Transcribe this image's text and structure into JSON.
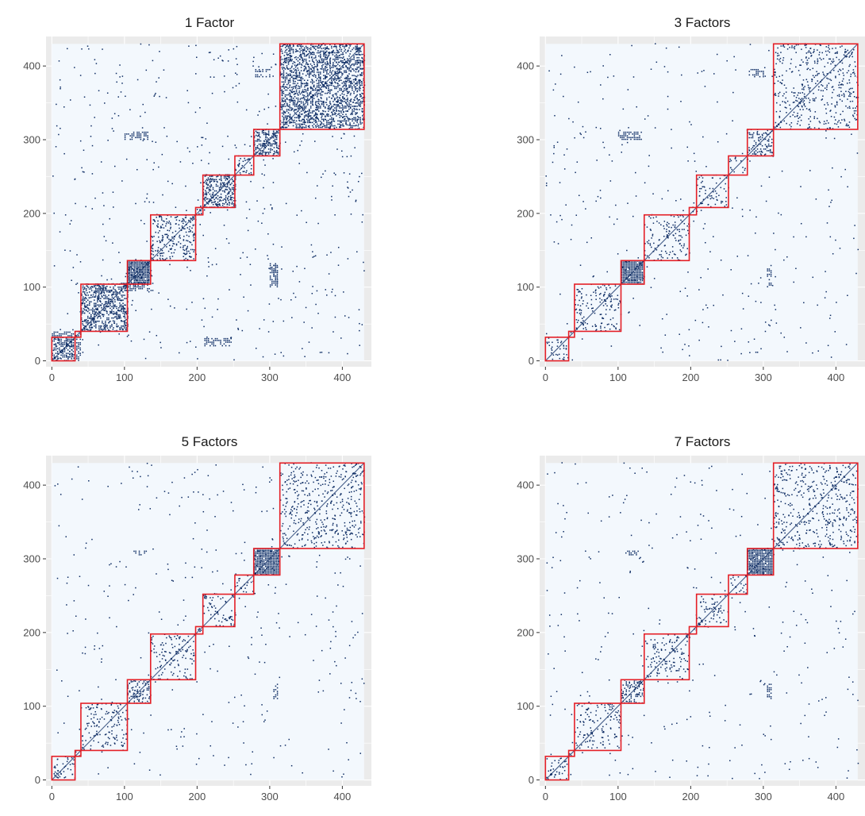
{
  "colors": {
    "panel_background": "#ebebeb",
    "matrix_background": "#f3f8fd",
    "grid_line": "#ffffff",
    "points": "#0c2b63",
    "block_outline": "#e41f26",
    "tick_label": "#4d4d4d",
    "title": "#1a1a1a"
  },
  "chart_data": [
    {
      "type": "heatmap",
      "title": "1 Factor",
      "xlabel": "",
      "ylabel": "",
      "xlim": [
        -8,
        440
      ],
      "ylim": [
        -8,
        440
      ],
      "matrix_extent": [
        0,
        430
      ],
      "x_ticks": [
        0,
        100,
        200,
        300,
        400
      ],
      "y_ticks": [
        0,
        100,
        200,
        300,
        400
      ],
      "grid": true,
      "legend": "none",
      "blocks": [
        [
          0,
          32
        ],
        [
          32,
          40
        ],
        [
          40,
          104
        ],
        [
          104,
          136
        ],
        [
          136,
          198
        ],
        [
          198,
          208
        ],
        [
          208,
          252
        ],
        [
          252,
          278
        ],
        [
          278,
          314
        ],
        [
          314,
          430
        ]
      ],
      "dense_blocks": [
        [
          104,
          136
        ],
        [
          278,
          314
        ],
        [
          208,
          252
        ],
        [
          314,
          430
        ],
        [
          40,
          104
        ]
      ],
      "off_block_clusters": [
        [
          100,
          132,
          300,
          310
        ],
        [
          300,
          310,
          100,
          132
        ],
        [
          305,
          312,
          105,
          130
        ],
        [
          95,
          140,
          95,
          105
        ],
        [
          280,
          300,
          385,
          395
        ],
        [
          210,
          250,
          20,
          30
        ],
        [
          0,
          40,
          0,
          40
        ]
      ]
    },
    {
      "type": "heatmap",
      "title": "3 Factors",
      "xlabel": "",
      "ylabel": "",
      "xlim": [
        -8,
        440
      ],
      "ylim": [
        -8,
        440
      ],
      "matrix_extent": [
        0,
        430
      ],
      "x_ticks": [
        0,
        100,
        200,
        300,
        400
      ],
      "y_ticks": [
        0,
        100,
        200,
        300,
        400
      ],
      "grid": true,
      "legend": "none",
      "blocks": [
        [
          0,
          32
        ],
        [
          32,
          40
        ],
        [
          40,
          104
        ],
        [
          104,
          136
        ],
        [
          136,
          198
        ],
        [
          198,
          208
        ],
        [
          208,
          252
        ],
        [
          252,
          278
        ],
        [
          278,
          314
        ],
        [
          314,
          430
        ]
      ],
      "dense_blocks": [
        [
          104,
          136
        ],
        [
          278,
          314
        ]
      ],
      "off_block_clusters": [
        [
          100,
          132,
          300,
          310
        ],
        [
          305,
          312,
          100,
          130
        ],
        [
          280,
          300,
          385,
          395
        ]
      ]
    },
    {
      "type": "heatmap",
      "title": "5 Factors",
      "xlabel": "",
      "ylabel": "",
      "xlim": [
        -8,
        440
      ],
      "ylim": [
        -8,
        440
      ],
      "matrix_extent": [
        0,
        430
      ],
      "x_ticks": [
        0,
        100,
        200,
        300,
        400
      ],
      "y_ticks": [
        0,
        100,
        200,
        300,
        400
      ],
      "grid": true,
      "legend": "none",
      "blocks": [
        [
          0,
          32
        ],
        [
          32,
          40
        ],
        [
          40,
          104
        ],
        [
          104,
          136
        ],
        [
          136,
          198
        ],
        [
          198,
          208
        ],
        [
          208,
          252
        ],
        [
          252,
          278
        ],
        [
          278,
          314
        ],
        [
          314,
          430
        ]
      ],
      "dense_blocks": [
        [
          278,
          314
        ],
        [
          104,
          136
        ]
      ],
      "off_block_clusters": [
        [
          110,
          130,
          305,
          312
        ],
        [
          305,
          312,
          110,
          130
        ]
      ]
    },
    {
      "type": "heatmap",
      "title": "7 Factors",
      "xlabel": "",
      "ylabel": "",
      "xlim": [
        -8,
        440
      ],
      "ylim": [
        -8,
        440
      ],
      "matrix_extent": [
        0,
        430
      ],
      "x_ticks": [
        0,
        100,
        200,
        300,
        400
      ],
      "y_ticks": [
        0,
        100,
        200,
        300,
        400
      ],
      "grid": true,
      "legend": "none",
      "blocks": [
        [
          0,
          32
        ],
        [
          32,
          40
        ],
        [
          40,
          104
        ],
        [
          104,
          136
        ],
        [
          136,
          198
        ],
        [
          198,
          208
        ],
        [
          208,
          252
        ],
        [
          252,
          278
        ],
        [
          278,
          314
        ],
        [
          314,
          430
        ]
      ],
      "dense_blocks": [
        [
          278,
          314
        ],
        [
          104,
          136
        ]
      ],
      "off_block_clusters": [
        [
          110,
          130,
          305,
          312
        ],
        [
          305,
          312,
          110,
          130
        ]
      ]
    }
  ]
}
